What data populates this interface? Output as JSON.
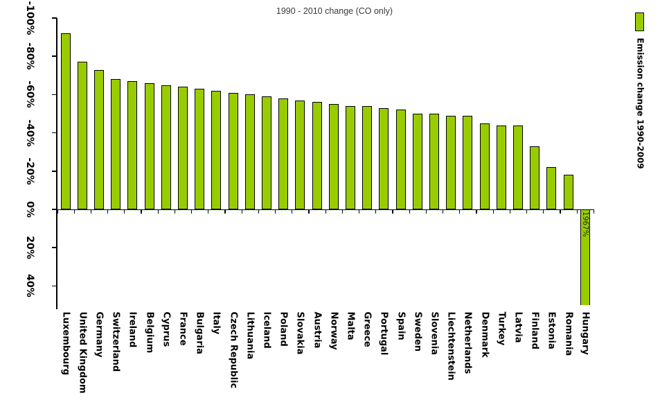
{
  "chart_data": {
    "type": "bar",
    "title": "1990 - 2010 change (CO only)",
    "xlabel": "",
    "ylabel": "",
    "units": "%",
    "bar_color": "#99CC00",
    "bar_border_color": "#000000",
    "axis": {
      "inverted": true,
      "ylim_top": -100,
      "ylim_bottom": 50,
      "grid": false
    },
    "y_ticks": [
      {
        "value": -100,
        "label": "-100%"
      },
      {
        "value": -80,
        "label": "-80%"
      },
      {
        "value": -60,
        "label": "-60%"
      },
      {
        "value": -40,
        "label": "-40%"
      },
      {
        "value": -20,
        "label": "-20%"
      },
      {
        "value": 0,
        "label": "0%"
      },
      {
        "value": 20,
        "label": "20%"
      },
      {
        "value": 40,
        "label": "40%"
      }
    ],
    "categories": [
      "Luxembourg",
      "United Kingdom",
      "Germany",
      "Switzerland",
      "Ireland",
      "Belgium",
      "Cyprus",
      "France",
      "Bulgaria",
      "Italy",
      "Czech Republic",
      "Lithuania",
      "Iceland",
      "Poland",
      "Slovakia",
      "Austria",
      "Norway",
      "Malta",
      "Greece",
      "Portugal",
      "Spain",
      "Sweden",
      "Slovenia",
      "Liechtenstein",
      "Netherlands",
      "Denmark",
      "Turkey",
      "Latvia",
      "Finland",
      "Estonia",
      "Romania",
      "Hungary"
    ],
    "values": [
      -92,
      -77,
      -73,
      -68,
      -67,
      -66,
      -65,
      -64,
      -63,
      -62,
      -61,
      -60,
      -59,
      -58,
      -57,
      -56,
      -55,
      -54,
      -54,
      -53,
      -52,
      -50,
      -50,
      -49,
      -49,
      -45,
      -44,
      -44,
      -33,
      -22,
      -18,
      1967
    ],
    "annotations": [
      {
        "category": "Hungary",
        "text": "1967%"
      }
    ],
    "legend": {
      "position": "right-vertical",
      "swatch_color": "#99CC00",
      "label": "Emission change 1990-2009"
    }
  }
}
